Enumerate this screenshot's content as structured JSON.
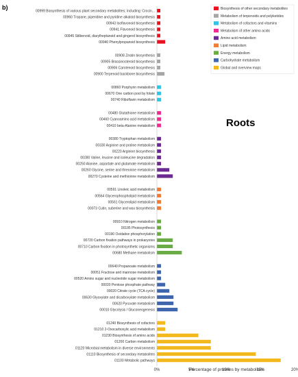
{
  "panel_letter": "b)",
  "chart_data": {
    "type": "bar",
    "orientation": "horizontal",
    "title": "Roots",
    "xlabel": "Percentage of proteins by metabolism",
    "xlim": [
      0,
      20
    ],
    "xticks": [
      "0%",
      "5%",
      "10%",
      "15%",
      "20%"
    ],
    "legend_position": "top-right",
    "legend": [
      {
        "name": "Biosynthesis of other secondary metabolites",
        "color": "#e8121e"
      },
      {
        "name": "Metabolism of terpenoids and polyketides",
        "color": "#a6a6a6"
      },
      {
        "name": "Metabolism of cofactors and vitamins",
        "color": "#33c3e6"
      },
      {
        "name": "Metabolism of other amino acids",
        "color": "#ee2a8c"
      },
      {
        "name": "Amino acid metabolism",
        "color": "#6b2a8f"
      },
      {
        "name": "Lipid metabolism",
        "color": "#ee7b38"
      },
      {
        "name": "Energy metabolism",
        "color": "#6aab45"
      },
      {
        "name": "Carbohydrate metabolism",
        "color": "#3f65ad"
      },
      {
        "name": "Global and overview maps",
        "color": "#f3b81c"
      }
    ],
    "groups": [
      {
        "color": "#e8121e",
        "items": [
          {
            "label": "00999 Biosynthesis of various plant secondary metabolites; including: Crocin...",
            "value": 0.5
          },
          {
            "label": "00960 Tropane, piperidine and pyridine alkaloid biosynthesis",
            "value": 0.5
          },
          {
            "label": "00943 Isoflavonoid biosynthesis",
            "value": 0.5
          },
          {
            "label": "00941 Flavonoid biosynthesis",
            "value": 0.5
          },
          {
            "label": "00945 Stilbenoid, diarylheptanoid and gingerol biosynthesis",
            "value": 0.5
          },
          {
            "label": "00940 Phenylpropanoid biosynthesis",
            "value": 1.2
          }
        ]
      },
      {
        "color": "#a6a6a6",
        "items": [
          {
            "label": "00908 Zeatin biosynthesis",
            "value": 0.5
          },
          {
            "label": "00905 Brassinosteroid biosynthesis",
            "value": 0.5
          },
          {
            "label": "00906 Carotenoid biosynthesis",
            "value": 0.5
          },
          {
            "label": "00900 Terpenoid backbone biosynthesis",
            "value": 1.1
          }
        ]
      },
      {
        "color": "#33c3e6",
        "items": [
          {
            "label": "00860 Porphyrin metabolism",
            "value": 0.6
          },
          {
            "label": "00670 One carbon pool by folate",
            "value": 0.6
          },
          {
            "label": "00740 Riboflavin metabolism",
            "value": 0.6
          }
        ]
      },
      {
        "color": "#ee2a8c",
        "items": [
          {
            "label": "00480 Glutathione metabolism",
            "value": 0.6
          },
          {
            "label": "00460 Cyanoamino acid metabolism",
            "value": 0.6
          },
          {
            "label": "00410 beta-Alanine metabolism",
            "value": 0.6
          }
        ]
      },
      {
        "color": "#6b2a8f",
        "items": [
          {
            "label": "00380 Tryptophan metabolism",
            "value": 0.6
          },
          {
            "label": "00330 Arginine and proline metabolism",
            "value": 0.6
          },
          {
            "label": "00220 Arginine biosynthesis",
            "value": 0.6
          },
          {
            "label": "00280 Valine, leucine and isoleucine degradation",
            "value": 0.6
          },
          {
            "label": "00250 Alanine, aspartate and glutamate metabolism",
            "value": 0.6
          },
          {
            "label": "00260 Glycine, serine and threonine metabolism",
            "value": 1.8
          },
          {
            "label": "00270 Cysteine and methionine metabolism",
            "value": 2.3
          }
        ]
      },
      {
        "color": "#ee7b38",
        "items": [
          {
            "label": "00591 Linoleic acid metabolism",
            "value": 0.6
          },
          {
            "label": "00564 Glycerophospholipid metabolism",
            "value": 0.6
          },
          {
            "label": "00561 Glycerolipid metabolism",
            "value": 0.6
          },
          {
            "label": "00073 Cutin, suberine and wax biosynthesis",
            "value": 0.6
          }
        ]
      },
      {
        "color": "#6aab45",
        "items": [
          {
            "label": "00910 Nitrogen metabolism",
            "value": 0.6
          },
          {
            "label": "00195 Photosynthesis",
            "value": 0.6
          },
          {
            "label": "00190 Oxidative phosphorylation",
            "value": 0.6
          },
          {
            "label": "00720 Carbon fixation pathways in prokaryotes",
            "value": 2.3
          },
          {
            "label": "00710 Carbon fixation in photosynthetic organisms",
            "value": 2.3
          },
          {
            "label": "00680 Methane metabolism",
            "value": 3.6
          }
        ]
      },
      {
        "color": "#3f65ad",
        "items": [
          {
            "label": "00640 Propanoate metabolism",
            "value": 0.6
          },
          {
            "label": "00051 Fructose and mannose metabolism",
            "value": 0.6
          },
          {
            "label": "00520 Amino sugar and nucleotide sugar metabolism",
            "value": 0.6
          },
          {
            "label": "00030 Pentose phosphate pathway",
            "value": 1.2
          },
          {
            "label": "00020 Citrate cycle (TCA cycle)",
            "value": 1.8
          },
          {
            "label": "00630 Glyoxylate and dicarboxylate metabolism",
            "value": 2.4
          },
          {
            "label": "00620 Pyruvate metabolism",
            "value": 2.4
          },
          {
            "label": "00010 Glycolysis / Gluconeogenesis",
            "value": 3.0
          }
        ]
      },
      {
        "color": "#f3b81c",
        "items": [
          {
            "label": "01240 Biosynthesis of cofactors",
            "value": 1.2
          },
          {
            "label": "01210 2-Oxocarboxylic acid metabolism",
            "value": 1.2
          },
          {
            "label": "01230 Biosynthesis of amino acids",
            "value": 6.0
          },
          {
            "label": "01200 Carbon metabolism",
            "value": 7.8
          },
          {
            "label": "01120 Microbial metabolism in diverse environments",
            "value": 7.8
          },
          {
            "label": "01110 Biosynthesis of secondary metabolites",
            "value": 14.3
          },
          {
            "label": "01100 Metabolic pathways",
            "value": 17.9
          }
        ]
      }
    ]
  }
}
